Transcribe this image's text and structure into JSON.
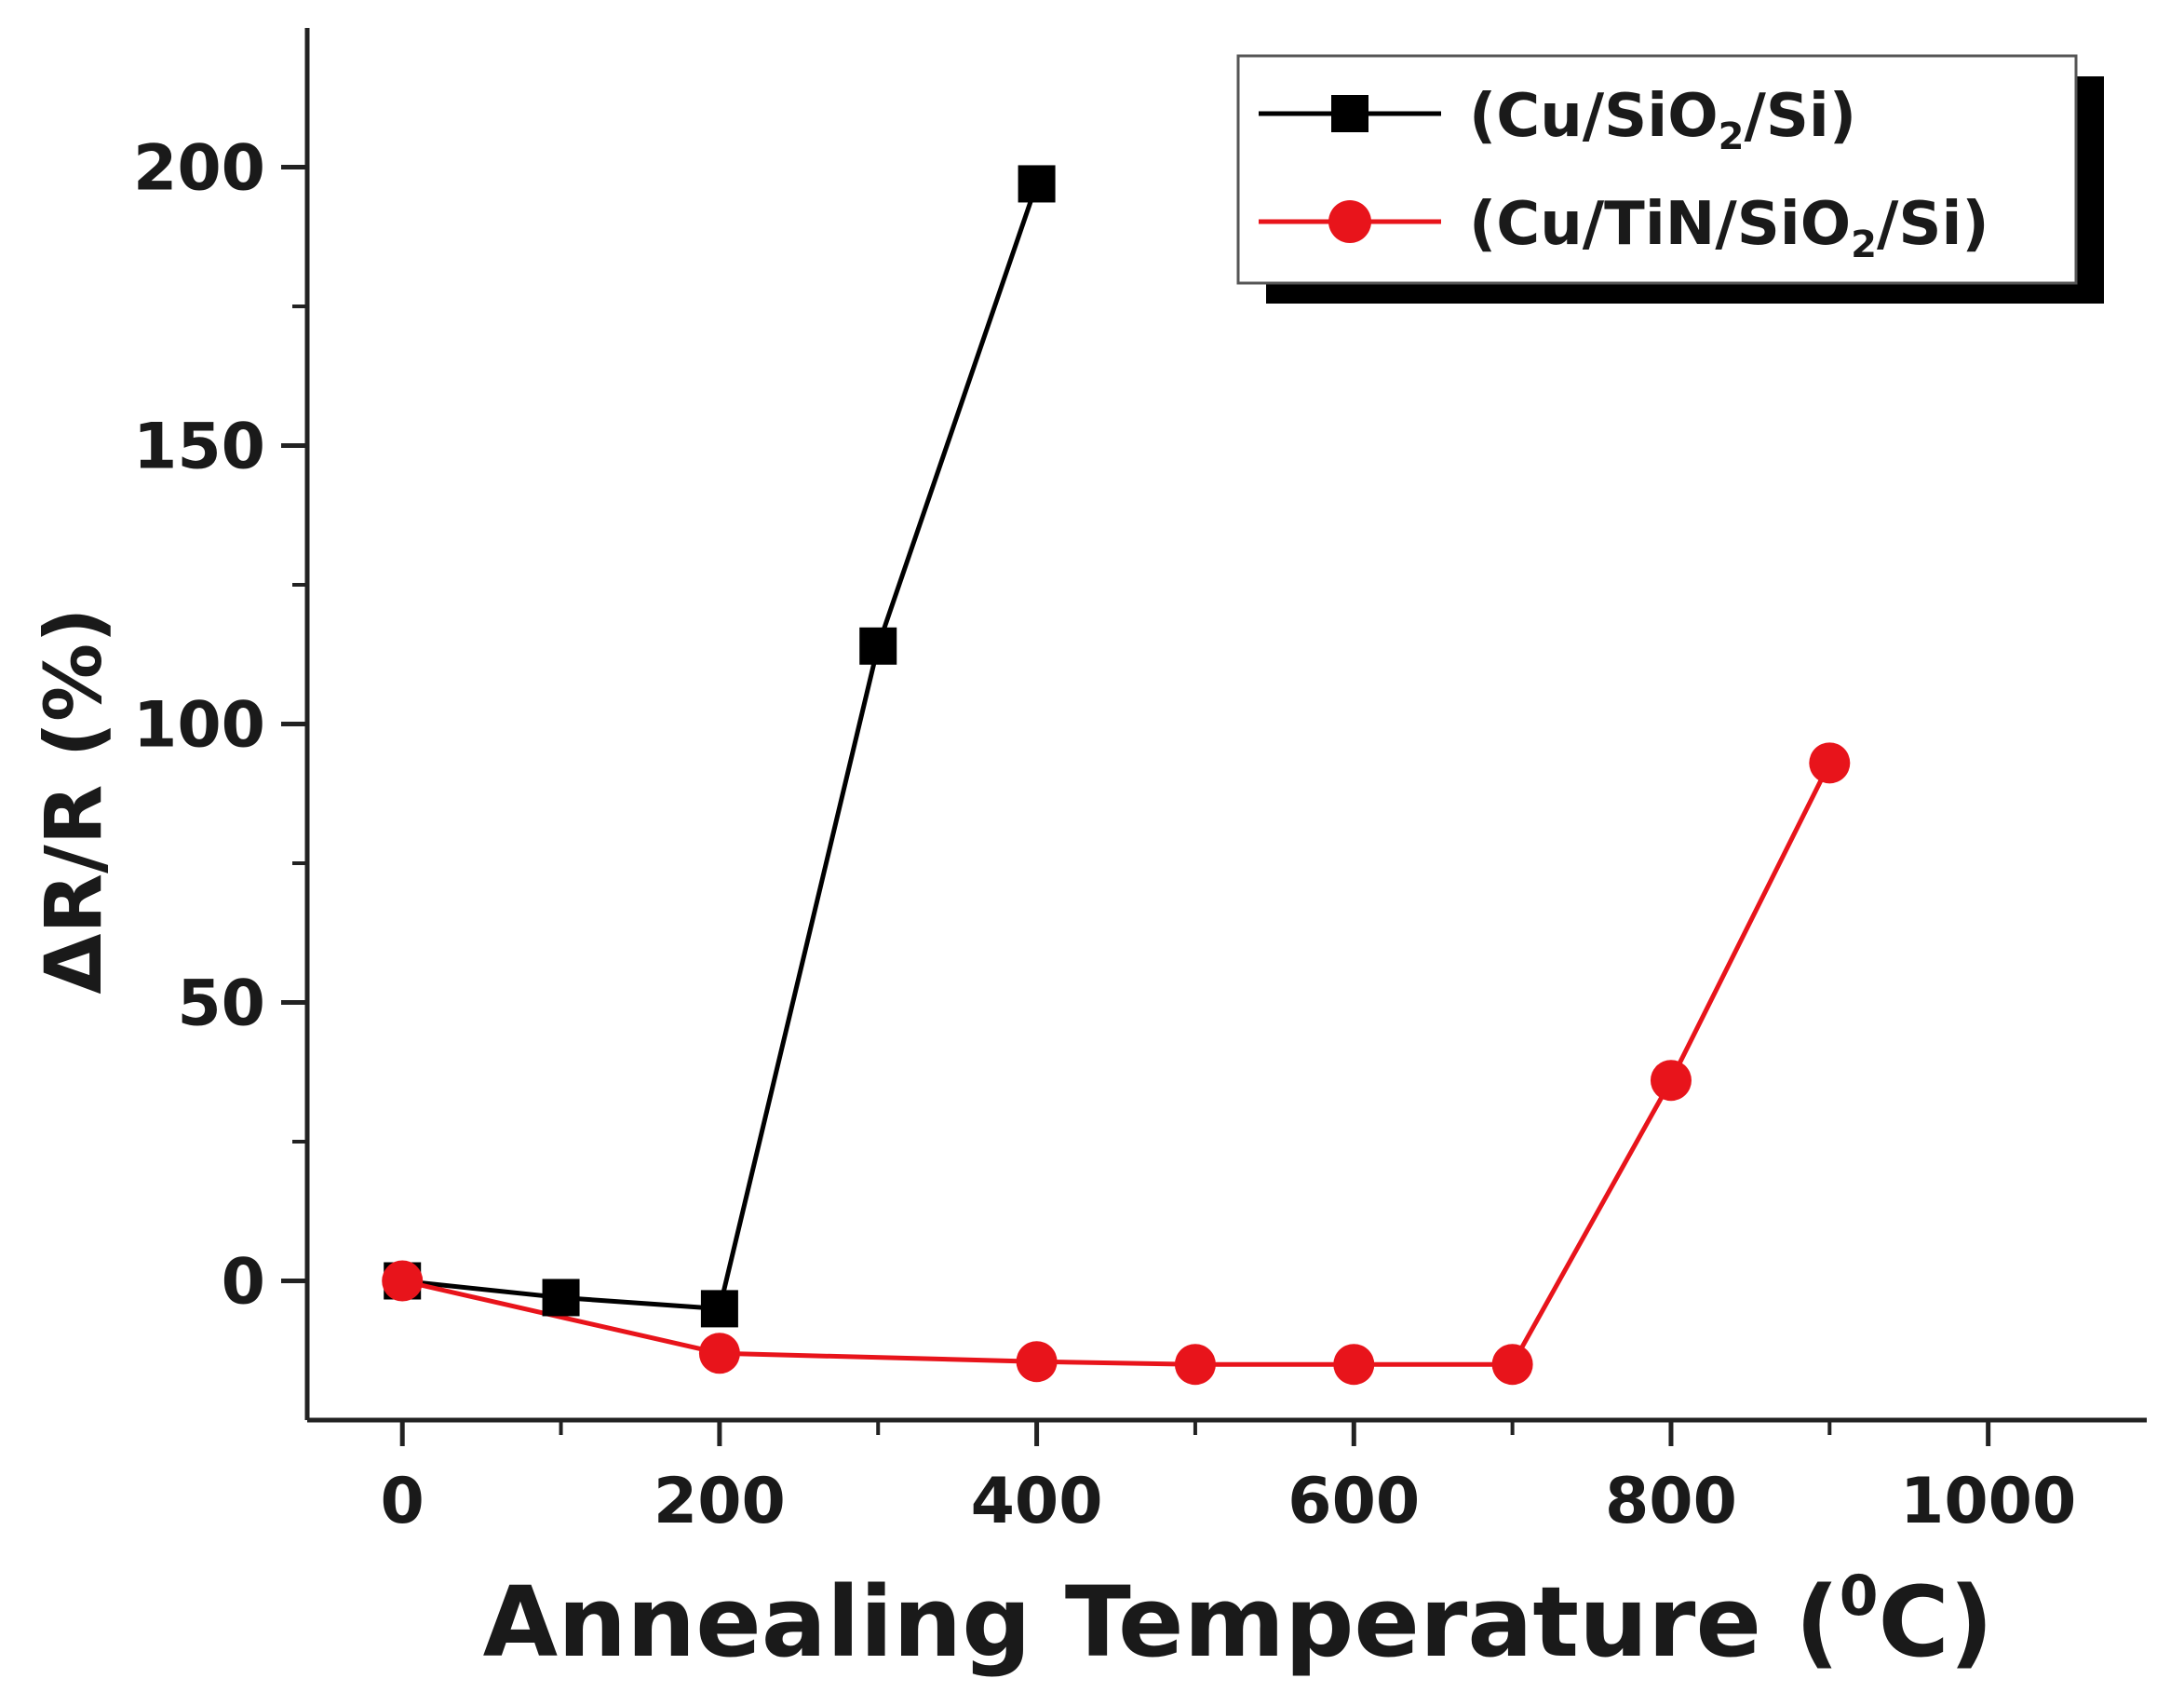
{
  "chart_data": {
    "type": "line",
    "title": "",
    "xlabel": "Annealing Temperature (",
    "xlabel_unit_sup": "0",
    "xlabel_unit_tail": "C)",
    "ylabel": "ΔR/R (%)",
    "xlim": [
      -60,
      1100
    ],
    "ylim": [
      -25,
      225
    ],
    "x_ticks": [
      0,
      200,
      400,
      600,
      800,
      1000
    ],
    "y_ticks": [
      0,
      50,
      100,
      150,
      200
    ],
    "x_minor_ticks": [
      100,
      300,
      500,
      700,
      900
    ],
    "y_minor_ticks": [
      25,
      75,
      125,
      175
    ],
    "grid": false,
    "legend_position": "top-right",
    "series": [
      {
        "name": "(Cu/SiO2/Si)",
        "legend_parts": [
          "(Cu/SiO",
          "2",
          "/Si)"
        ],
        "color": "#000000",
        "marker": "square",
        "x": [
          0,
          100,
          200,
          300,
          400
        ],
        "y": [
          0,
          -3,
          -5,
          114,
          197
        ]
      },
      {
        "name": "(Cu/TiN/SiO2/Si)",
        "legend_parts": [
          "(Cu/TiN/SiO",
          "2",
          "/Si)"
        ],
        "color": "#e8141b",
        "marker": "circle",
        "x": [
          0,
          200,
          400,
          500,
          600,
          700,
          800,
          900
        ],
        "y": [
          0,
          -13,
          -14.5,
          -15,
          -15,
          -15,
          36,
          93
        ]
      }
    ]
  }
}
